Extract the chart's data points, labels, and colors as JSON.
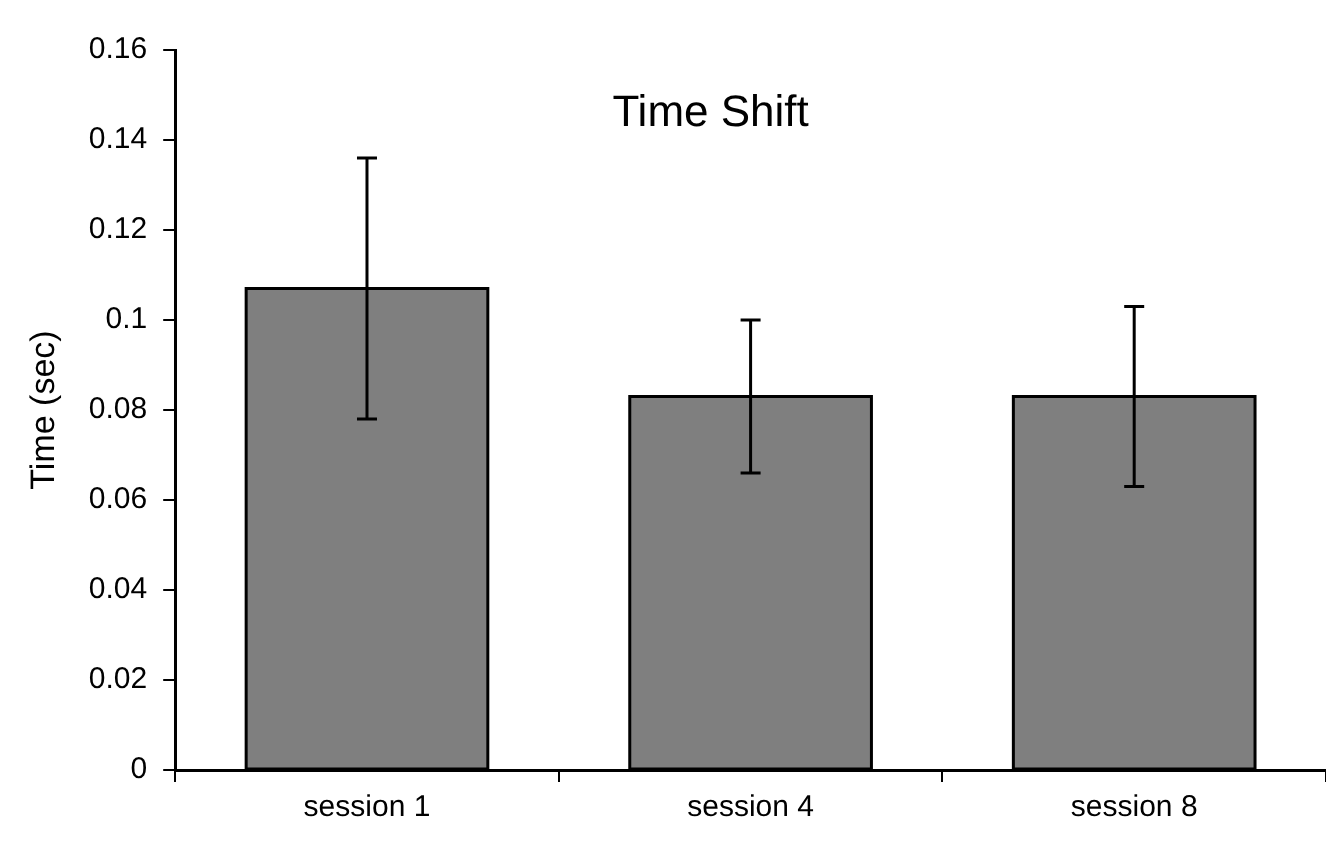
{
  "chart_data": {
    "type": "bar",
    "title": "Time Shift",
    "ylabel": "Time (sec)",
    "categories": [
      "session 1",
      "session 4",
      "session 8"
    ],
    "values": [
      0.107,
      0.083,
      0.083
    ],
    "errors": [
      0.029,
      0.017,
      0.02
    ],
    "color": "#7f7f7f",
    "ylim": [
      0,
      0.16
    ],
    "yticks": [
      0,
      0.02,
      0.04,
      0.06,
      0.08,
      0.1,
      0.12,
      0.14,
      0.16
    ],
    "grid": false,
    "legend": false
  }
}
